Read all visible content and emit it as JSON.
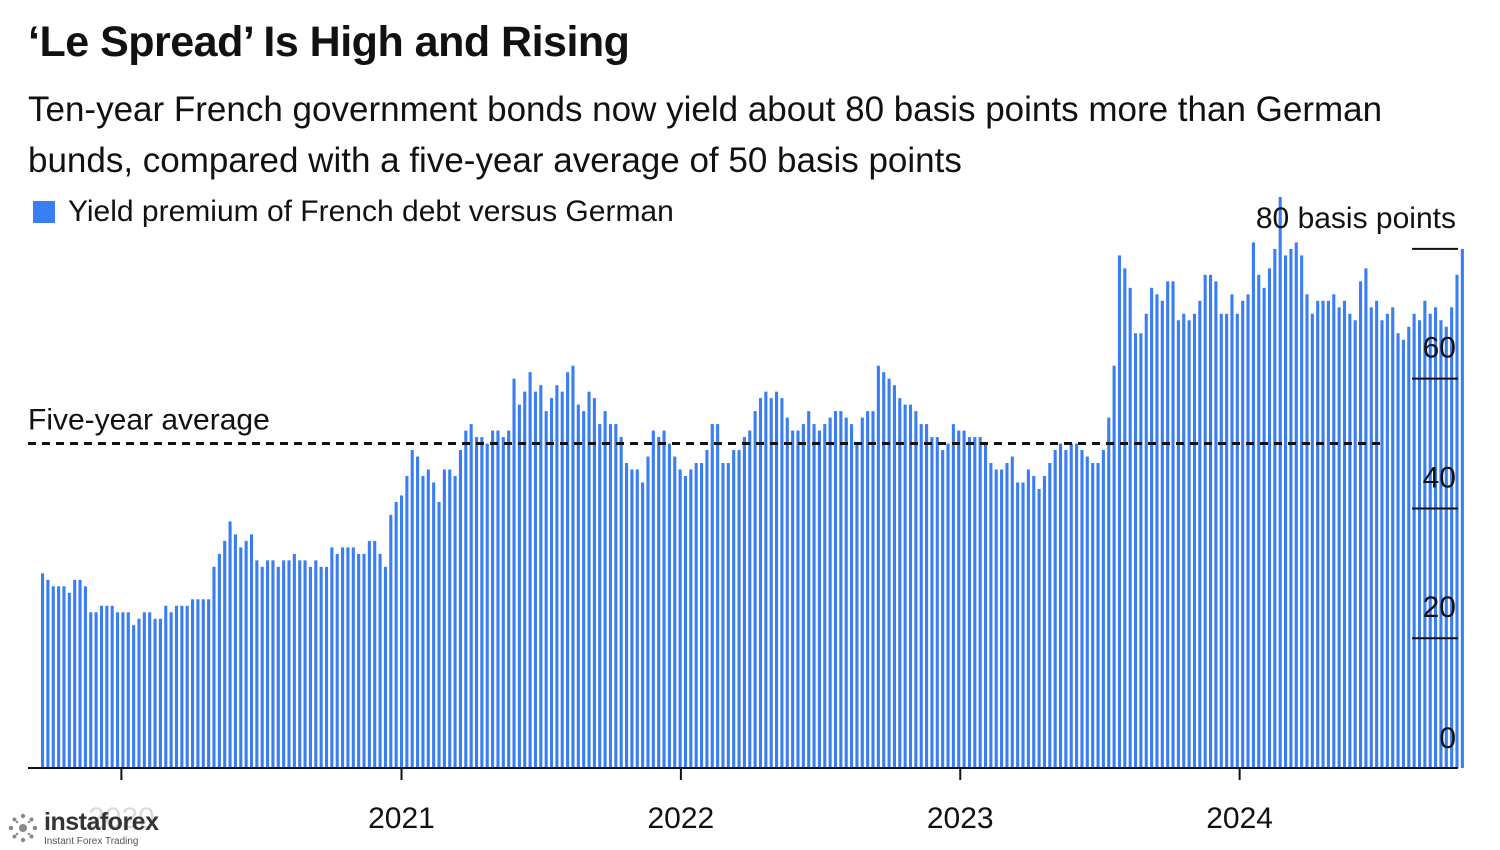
{
  "header": {
    "title": "‘Le Spread’ Is High and Rising",
    "subtitle": "Ten-year French government bonds now yield about 80 basis points more than German bunds, compared with a five-year average of 50 basis points"
  },
  "watermark": {
    "brand": "instaforex",
    "tagline": "Instant Forex Trading",
    "logo_icon": "starburst-logo-icon"
  },
  "colors": {
    "bar": "#3a7ef3",
    "text": "#111111",
    "axis": "#111111"
  },
  "chart_data": {
    "type": "bar",
    "title": "‘Le Spread’ Is High and Rising",
    "series": [
      {
        "name": "Yield premium of French debt versus German",
        "start_date": "2019-09-20",
        "frequency": "weekly",
        "values": [
          30,
          29,
          28,
          28,
          28,
          27,
          29,
          29,
          28,
          24,
          24,
          25,
          25,
          25,
          24,
          24,
          24,
          22,
          23,
          24,
          24,
          23,
          23,
          25,
          24,
          25,
          25,
          25,
          26,
          26,
          26,
          26,
          31,
          33,
          35,
          38,
          36,
          34,
          35,
          36,
          32,
          31,
          32,
          32,
          31,
          32,
          32,
          33,
          32,
          32,
          31,
          32,
          31,
          31,
          34,
          33,
          34,
          34,
          34,
          33,
          33,
          35,
          35,
          33,
          31,
          39,
          41,
          42,
          45,
          49,
          48,
          45,
          46,
          44,
          41,
          46,
          46,
          45,
          49,
          52,
          53,
          51,
          51,
          50,
          52,
          52,
          51,
          52,
          60,
          56,
          58,
          61,
          58,
          59,
          55,
          57,
          59,
          58,
          61,
          62,
          56,
          55,
          58,
          57,
          53,
          55,
          53,
          53,
          51,
          47,
          46,
          46,
          44,
          48,
          52,
          51,
          52,
          50,
          48,
          46,
          45,
          46,
          47,
          47,
          49,
          53,
          53,
          47,
          47,
          49,
          49,
          51,
          52,
          55,
          57,
          58,
          57,
          58,
          57,
          54,
          52,
          52,
          53,
          55,
          53,
          52,
          53,
          54,
          55,
          55,
          54,
          53,
          50,
          54,
          55,
          55,
          62,
          61,
          60,
          59,
          57,
          56,
          56,
          55,
          53,
          53,
          51,
          51,
          49,
          50,
          53,
          52,
          52,
          51,
          51,
          51,
          50,
          47,
          46,
          46,
          47,
          48,
          44,
          44,
          46,
          45,
          43,
          45,
          47,
          49,
          50,
          49,
          50,
          50,
          49,
          48,
          47,
          47,
          49,
          54,
          62,
          79,
          77,
          74,
          67,
          67,
          70,
          74,
          73,
          72,
          75,
          75,
          69,
          70,
          69,
          70,
          72,
          76,
          76,
          75,
          70,
          70,
          73,
          70,
          72,
          73,
          81,
          76,
          74,
          77,
          80,
          88,
          79,
          80,
          81,
          79,
          73,
          70,
          72,
          72,
          72,
          73,
          71,
          72,
          70,
          69,
          75,
          77,
          71,
          72,
          69,
          70,
          71,
          67,
          66,
          68,
          70,
          69,
          72,
          70,
          71,
          69,
          68,
          71,
          76,
          80
        ]
      }
    ],
    "xlabel": "",
    "ylabel": "",
    "ylim": [
      0,
      90
    ],
    "y_ticks": [
      {
        "value": 80,
        "label": "80 basis points"
      },
      {
        "value": 60,
        "label": "60"
      },
      {
        "value": 40,
        "label": "40"
      },
      {
        "value": 20,
        "label": "20"
      },
      {
        "value": 0,
        "label": "0"
      }
    ],
    "x_ticks": [
      {
        "date": "2020-01-01",
        "label": "2020"
      },
      {
        "date": "2021-01-01",
        "label": "2021"
      },
      {
        "date": "2022-01-01",
        "label": "2022"
      },
      {
        "date": "2023-01-01",
        "label": "2023"
      },
      {
        "date": "2024-01-01",
        "label": "2024"
      }
    ],
    "x_range": [
      "2019-09-01",
      "2024-12-31"
    ],
    "reference_line": {
      "value": 50,
      "label": "Five-year average",
      "style": "dashed"
    },
    "grid": false,
    "legend": {
      "position": "top-left"
    }
  }
}
